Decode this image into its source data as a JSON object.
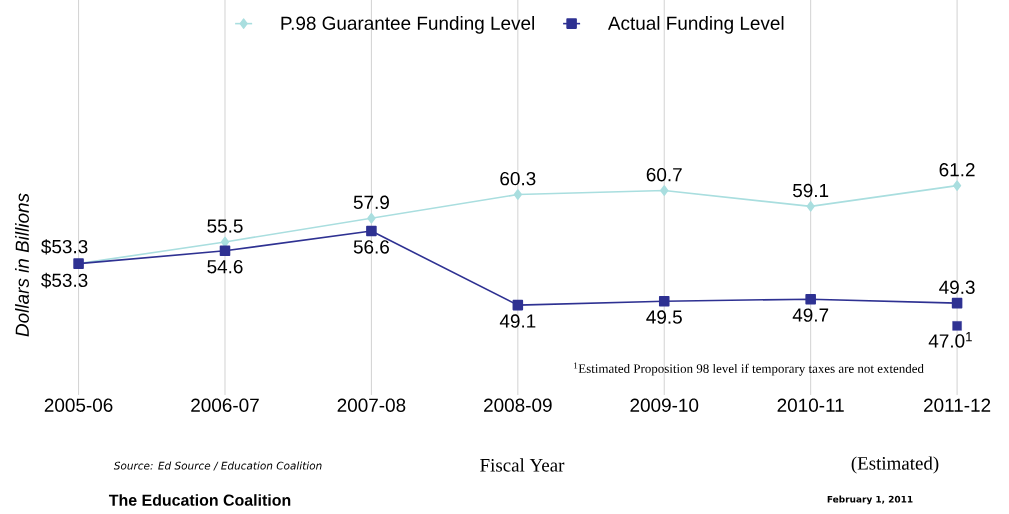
{
  "chart_data": {
    "type": "line",
    "categories": [
      "2005-06",
      "2006-07",
      "2007-08",
      "2008-09",
      "2009-10",
      "2010-11",
      "2011-12"
    ],
    "series": [
      {
        "name": "P.98 Guarantee Funding Level",
        "color": "#a9dedf",
        "marker": "diamond",
        "values": [
          53.3,
          55.5,
          57.9,
          60.3,
          60.7,
          59.1,
          61.2
        ],
        "value_labels": [
          "$53.3",
          "55.5",
          "57.9",
          "60.3",
          "60.7",
          "59.1",
          "61.2"
        ]
      },
      {
        "name": "Actual Funding Level",
        "color": "#2e3192",
        "marker": "square",
        "values": [
          53.3,
          54.6,
          56.6,
          49.1,
          49.5,
          49.7,
          49.3
        ],
        "value_labels": [
          "$53.3",
          "54.6",
          "56.6",
          "49.1",
          "49.5",
          "49.7",
          "49.3"
        ]
      },
      {
        "type": "scatter",
        "color": "#2e3192",
        "marker": "square",
        "values": [
          null,
          null,
          null,
          null,
          null,
          null,
          47.0
        ],
        "value_labels": [
          null,
          null,
          null,
          null,
          null,
          null,
          "47.0$^{1}$"
        ]
      }
    ],
    "ylim": [
      40,
      80
    ],
    "xlabel": "Fiscal Year",
    "ylabel": "Dollars in Billions",
    "grid": "x",
    "legend": "top",
    "tick_labels": "x",
    "line_style": "solid",
    "annotations": [
      "$^{1}$Estimated Proposition 98 level if temporary taxes are not extended",
      "(Estimated)",
      "Source: Ed Source / Education Coalition",
      "The Education Coalition",
      "February 1, 2011"
    ]
  }
}
